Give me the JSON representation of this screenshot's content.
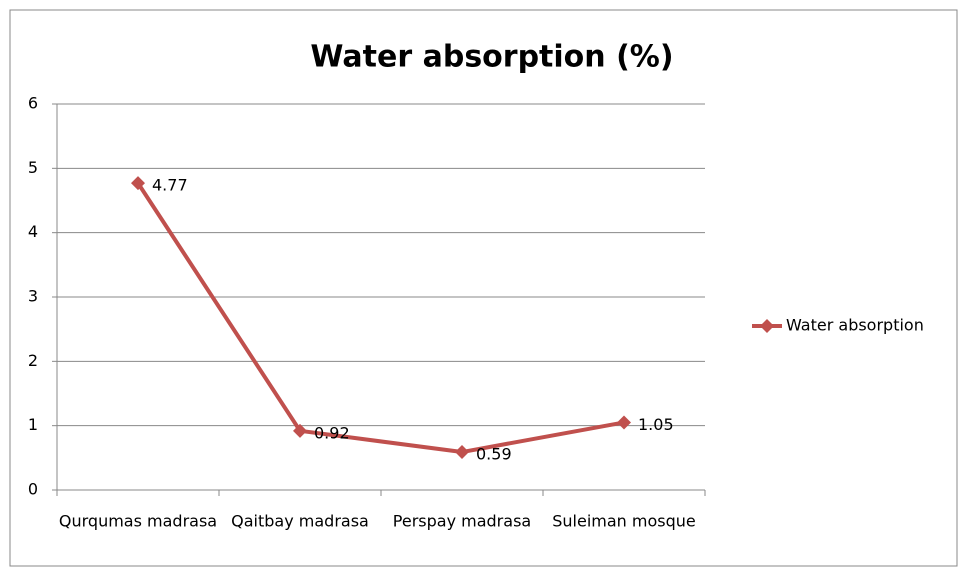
{
  "chart_data": {
    "type": "line",
    "title": "Water absorption (%)",
    "categories": [
      "Qurqumas madrasa",
      "Qaitbay madrasa",
      "Perspay madrasa",
      "Suleiman mosque"
    ],
    "series": [
      {
        "name": "Water absorption",
        "color": "#c0504d",
        "values": [
          4.77,
          0.92,
          0.59,
          1.05
        ]
      }
    ],
    "ylim": [
      0,
      6
    ],
    "yticks": [
      0,
      1,
      2,
      3,
      4,
      5,
      6
    ],
    "grid": true,
    "legend": "right"
  }
}
